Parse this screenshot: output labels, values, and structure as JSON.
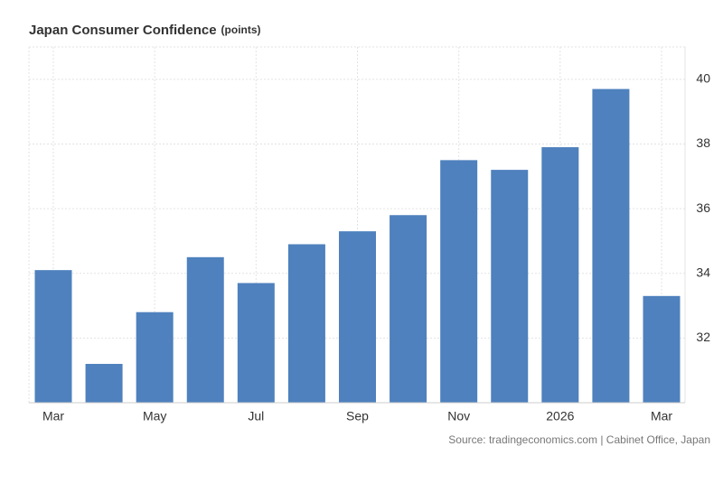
{
  "chart_data": {
    "type": "bar",
    "title": "Japan Consumer Confidence",
    "unit": "(points)",
    "source": "Source: tradingeconomics.com | Cabinet Office, Japan",
    "categories": [
      "Mar",
      null,
      "May",
      null,
      "Jul",
      null,
      "Sep",
      null,
      "Nov",
      null,
      "2026",
      null,
      "Mar"
    ],
    "values": [
      34.1,
      31.2,
      32.8,
      34.5,
      33.7,
      34.9,
      35.3,
      35.8,
      37.5,
      37.2,
      37.9,
      39.7,
      33.3
    ],
    "color": "#4e81bd",
    "ylim": [
      30,
      41
    ],
    "yticks": [
      32,
      34,
      36,
      38,
      40
    ],
    "grid": true
  }
}
